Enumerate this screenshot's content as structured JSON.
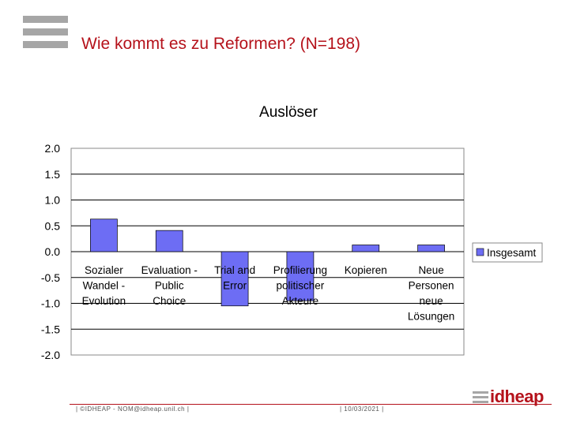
{
  "slide": {
    "title": "Wie kommt es zu Reformen? (N=198)",
    "footer_left": "| ©IDHEAP - NOM@idheap.unil.ch |",
    "footer_date": "| 10/03/2021 |",
    "logo_text": "idheap"
  },
  "colors": {
    "accent": "#b5121b",
    "bar_fill": "#6d6df4",
    "logo_grey": "#a6a6a6"
  },
  "chart_data": {
    "type": "bar",
    "title": "Auslöser",
    "categories": [
      "Sozialer Wandel - Evolution",
      "Evaluation - Public Choice",
      "Trial and Error",
      "Profilierung politischer Akteure",
      "Kopieren",
      "Neue Personen neue Lösungen"
    ],
    "category_lines": [
      [
        "Sozialer",
        "Wandel -",
        "Evolution"
      ],
      [
        "Evaluation -",
        "Public",
        "Choice"
      ],
      [
        "Trial and",
        "Error"
      ],
      [
        "Profilierung",
        "politischer",
        "Akteure"
      ],
      [
        "Kopieren"
      ],
      [
        "Neue",
        "Personen",
        "neue",
        "Lösungen"
      ]
    ],
    "series": [
      {
        "name": "Insgesamt",
        "values": [
          0.63,
          0.41,
          -1.05,
          -0.95,
          0.13,
          0.13
        ]
      }
    ],
    "y_ticks": [
      "2.0",
      "1.5",
      "1.0",
      "0.5",
      "0.0",
      "-0.5",
      "-1.0",
      "-1.5",
      "-2.0"
    ],
    "ylim": [
      -2.0,
      2.0
    ],
    "legend_position": "right"
  }
}
